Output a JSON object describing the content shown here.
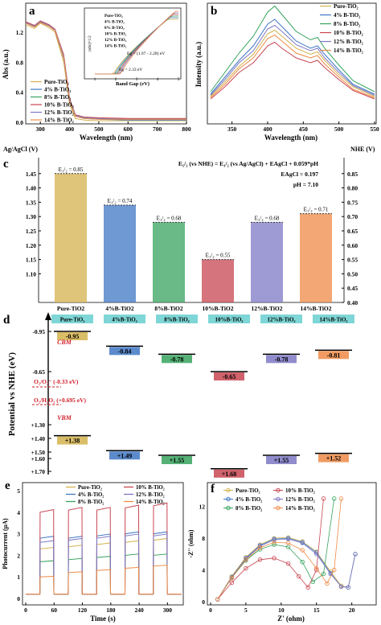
{
  "colors": {
    "pure": "#d4b24c",
    "b4": "#3f77c4",
    "b8": "#37a35e",
    "b10": "#c84652",
    "b12": "#7d78c4",
    "b14": "#ef8a46",
    "cyan": "#7fd6d6",
    "red": "#d01f2a"
  },
  "panel_a": {
    "label": "a",
    "xlabel": "Wavelength (nm)",
    "ylabel": "Abs (a.u.)",
    "xticks": [
      "300",
      "400",
      "500",
      "600",
      "700",
      "800"
    ],
    "yticks": [
      "0.0",
      "0.4",
      "0.8",
      "1.2"
    ],
    "legend": [
      "Pure-TiO₂",
      "4% B-TiO₂",
      "8% B-TiO₂",
      "10% B-TiO₂",
      "12% B-TiO₂",
      "14% B-TiO₂"
    ],
    "inset": {
      "xlabel": "Band Gap (eV)",
      "ylabel": "(αhν)^1/2",
      "xticks": [
        "1",
        "2",
        "3",
        "4",
        "5"
      ],
      "legend": [
        "Pure-TiO₂",
        "4% B-TiO₂",
        "8% B-TiO₂",
        "10% B-TiO₂",
        "12% B-TiO₂",
        "14% B-TiO₂"
      ],
      "ann1": "Eg = (1.97 - 2.28) eV",
      "ann2": "Eg = 2.33 eV"
    }
  },
  "panel_b": {
    "label": "b",
    "xlabel": "Wavelength (nm)",
    "ylabel": "Intensity (a.u.)",
    "xticks": [
      "350",
      "400",
      "450",
      "500",
      "550"
    ],
    "legend": [
      "Pure-TiO₂",
      "4% B-TiO₂",
      "8% B-TiO₂",
      "10% B-TiO₂",
      "12% B-TiO₂",
      "14% B-TiO₂"
    ]
  },
  "panel_c": {
    "label": "c",
    "left_axis_title": "Ag/AgCl (V)",
    "right_axis_title": "NHE (V)",
    "eq1": "E₁/₂ (vs NHE) = E₁/₂ (vs Ag/AgCl) + EAgCl + 0.059*pH",
    "eq2": "EAgCl = 0.197",
    "eq3": "pH = 7.10",
    "left_ticks": [
      "1.45",
      "1.40",
      "1.35",
      "1.30",
      "1.25",
      "1.20",
      "1.15",
      "1.10"
    ],
    "right_ticks": [
      "0.85",
      "0.80",
      "0.75",
      "0.70",
      "0.65",
      "0.60",
      "0.55",
      "0.50",
      "0.45",
      "0.40"
    ],
    "categories": [
      "Pure-TiO2",
      "4%B-TiO2",
      "8%B-TiO2",
      "10%B-TiO2",
      "12%B-TiO2",
      "14%B-TiO2"
    ],
    "bar_labels": [
      "E₁/₂ = 0.85",
      "E₁/₂ = 0.74",
      "E₁/₂ = 0.68",
      "E₁/₂ = 0.55",
      "E₁/₂ = 0.68",
      "E₁/₂ = 0.71"
    ]
  },
  "panel_d": {
    "label": "d",
    "ylabel": "Potential vs NHE (eV)",
    "headers": [
      "Pure-TiO₂",
      "4%B-TiO₂",
      "8%B-TiO₂",
      "10%B-TiO₂",
      "12%B-TiO₂",
      "14%B-TiO₂"
    ],
    "yticks": [
      "-0.95",
      "-0.65",
      "-0.33",
      "+0.695",
      "+1.30",
      "+1.40",
      "+1.50",
      "+1.60",
      "+1.70"
    ],
    "cb": [
      "-0.95",
      "-0.84",
      "-0.78",
      "-0.65",
      "-0.78",
      "-0.81"
    ],
    "vb": [
      "+1.38",
      "+1.49",
      "+1.55",
      "+1.68",
      "+1.55",
      "+1.52"
    ],
    "cbm": "CBM",
    "vbm": "VBM",
    "o2": "O₂/O₂⁻ (-0.33 eV)",
    "h2o2": "O₂/H₂O₂ (+0.695 eV)"
  },
  "panel_e": {
    "label": "e",
    "xlabel": "Time (s)",
    "ylabel": "Photocurrent (μA)",
    "xticks": [
      "0",
      "60",
      "120",
      "180",
      "240",
      "300"
    ],
    "yticks": [
      "0",
      "1",
      "2",
      "3",
      "4",
      "5"
    ],
    "legend": [
      "Pure-TiO₂",
      "4% B-TiO₂",
      "8% B-TiO₂",
      "10% B-TiO₂",
      "12% B-TiO₂",
      "14% B-TiO₂"
    ]
  },
  "panel_f": {
    "label": "f",
    "xlabel": "Z' (ohm)",
    "ylabel": "-Z'' (ohm)",
    "xticks": [
      "0",
      "5",
      "10",
      "15",
      "20"
    ],
    "yticks": [
      "0",
      "4",
      "8",
      "12"
    ],
    "legend": [
      "Pure-TiO₂",
      "4% B-TiO₂",
      "8% B-TiO₂",
      "10% B-TiO₂",
      "12% B-TiO₂",
      "14% B-TiO₂"
    ]
  },
  "chart_data": [
    {
      "type": "line",
      "panel": "a",
      "xlabel": "Wavelength (nm)",
      "ylabel": "Abs (a.u.)",
      "xlim": [
        250,
        800
      ],
      "ylim": [
        0,
        1.5
      ],
      "x": [
        250,
        280,
        300,
        330,
        350,
        380,
        400,
        420,
        450,
        500,
        600,
        700,
        800
      ],
      "series": [
        {
          "name": "Pure-TiO₂",
          "values": [
            1.3,
            1.25,
            1.32,
            1.26,
            1.2,
            0.8,
            0.25,
            0.05,
            0.03,
            0.02,
            0.02,
            0.02,
            0.02
          ]
        },
        {
          "name": "4% B-TiO₂",
          "values": [
            1.32,
            1.27,
            1.33,
            1.28,
            1.22,
            0.85,
            0.28,
            0.08,
            0.05,
            0.04,
            0.03,
            0.03,
            0.03
          ]
        },
        {
          "name": "8% B-TiO₂",
          "values": [
            1.33,
            1.28,
            1.34,
            1.29,
            1.23,
            0.87,
            0.3,
            0.09,
            0.06,
            0.05,
            0.04,
            0.04,
            0.04
          ]
        },
        {
          "name": "10% B-TiO₂",
          "values": [
            1.34,
            1.29,
            1.35,
            1.3,
            1.24,
            0.9,
            0.32,
            0.1,
            0.07,
            0.06,
            0.05,
            0.05,
            0.05
          ]
        },
        {
          "name": "12% B-TiO₂",
          "values": [
            1.33,
            1.28,
            1.34,
            1.29,
            1.23,
            0.88,
            0.31,
            0.09,
            0.06,
            0.05,
            0.04,
            0.04,
            0.04
          ]
        },
        {
          "name": "14% B-TiO₂",
          "values": [
            1.32,
            1.27,
            1.33,
            1.28,
            1.22,
            0.86,
            0.29,
            0.08,
            0.05,
            0.04,
            0.04,
            0.04,
            0.04
          ]
        }
      ]
    },
    {
      "type": "line",
      "panel": "b",
      "xlabel": "Wavelength (nm)",
      "ylabel": "Intensity (a.u.)",
      "xlim": [
        320,
        550
      ],
      "x": [
        320,
        340,
        360,
        380,
        400,
        410,
        420,
        440,
        460,
        470,
        480,
        500,
        520,
        550
      ],
      "series": [
        {
          "name": "Pure-TiO₂",
          "values": [
            0.2,
            0.32,
            0.45,
            0.55,
            0.72,
            0.75,
            0.7,
            0.6,
            0.55,
            0.57,
            0.5,
            0.38,
            0.28,
            0.2
          ]
        },
        {
          "name": "4% B-TiO₂",
          "values": [
            0.22,
            0.36,
            0.5,
            0.62,
            0.8,
            0.84,
            0.78,
            0.66,
            0.6,
            0.62,
            0.55,
            0.42,
            0.3,
            0.22
          ]
        },
        {
          "name": "8% B-TiO₂",
          "values": [
            0.24,
            0.4,
            0.56,
            0.7,
            0.9,
            0.95,
            0.88,
            0.74,
            0.67,
            0.69,
            0.6,
            0.46,
            0.33,
            0.24
          ]
        },
        {
          "name": "10% B-TiO₂",
          "values": [
            0.18,
            0.28,
            0.4,
            0.48,
            0.62,
            0.65,
            0.6,
            0.52,
            0.48,
            0.5,
            0.44,
            0.34,
            0.25,
            0.18
          ]
        },
        {
          "name": "12% B-TiO₂",
          "values": [
            0.21,
            0.34,
            0.48,
            0.58,
            0.76,
            0.79,
            0.74,
            0.63,
            0.58,
            0.6,
            0.52,
            0.4,
            0.29,
            0.21
          ]
        },
        {
          "name": "14% B-TiO₂",
          "values": [
            0.19,
            0.3,
            0.43,
            0.52,
            0.68,
            0.71,
            0.66,
            0.56,
            0.52,
            0.54,
            0.47,
            0.36,
            0.26,
            0.19
          ]
        }
      ]
    },
    {
      "type": "bar",
      "panel": "c",
      "categories": [
        "Pure-TiO2",
        "4%B-TiO2",
        "8%B-TiO2",
        "10%B-TiO2",
        "12%B-TiO2",
        "14%B-TiO2"
      ],
      "values": [
        0.85,
        0.74,
        0.68,
        0.55,
        0.68,
        0.71
      ],
      "ylabel": "NHE (V)",
      "ylim": [
        0.4,
        0.9
      ]
    },
    {
      "type": "bar",
      "panel": "d",
      "categories": [
        "Pure-TiO₂",
        "4%B-TiO₂",
        "8%B-TiO₂",
        "10%B-TiO₂",
        "12%B-TiO₂",
        "14%B-TiO₂"
      ],
      "series": [
        {
          "name": "CBM",
          "values": [
            -0.95,
            -0.84,
            -0.78,
            -0.65,
            -0.78,
            -0.81
          ]
        },
        {
          "name": "VBM",
          "values": [
            1.38,
            1.49,
            1.55,
            1.68,
            1.55,
            1.52
          ]
        }
      ]
    },
    {
      "type": "line",
      "panel": "e",
      "xlabel": "Time (s)",
      "ylabel": "Photocurrent (μA)",
      "xlim": [
        0,
        330
      ],
      "ylim": [
        0,
        5
      ],
      "series": [
        {
          "name": "Pure-TiO₂",
          "values": [
            2.3,
            2.4,
            2.5,
            2.6,
            2.7
          ]
        },
        {
          "name": "4% B-TiO₂",
          "values": [
            2.8,
            2.8,
            2.9,
            3.0,
            3.0
          ]
        },
        {
          "name": "8% B-TiO₂",
          "values": [
            1.7,
            1.8,
            1.9,
            2.0,
            2.0
          ]
        },
        {
          "name": "10% B-TiO₂",
          "values": [
            4.0,
            4.1,
            4.1,
            4.2,
            4.3
          ]
        },
        {
          "name": "12% B-TiO₂",
          "values": [
            2.6,
            2.7,
            2.8,
            2.9,
            2.9
          ]
        },
        {
          "name": "14% B-TiO₂",
          "values": [
            1.0,
            1.2,
            1.3,
            1.4,
            1.5
          ]
        }
      ]
    },
    {
      "type": "scatter",
      "panel": "f",
      "xlabel": "Z' (ohm)",
      "ylabel": "-Z'' (ohm)",
      "xlim": [
        0,
        23
      ],
      "ylim": [
        0,
        14
      ],
      "series": [
        {
          "name": "Pure-TiO₂",
          "x": [
            1,
            3,
            5,
            7,
            9,
            11,
            13,
            15,
            17,
            18.5,
            19.5,
            20.5
          ],
          "values": [
            0.3,
            3.2,
            5.6,
            7.2,
            8.0,
            8.1,
            7.6,
            6.3,
            3.8,
            2.0,
            1.8,
            6.0
          ]
        },
        {
          "name": "4% B-TiO₂",
          "x": [
            1,
            3,
            5,
            7,
            9,
            11,
            13,
            15,
            17,
            18.5,
            19.5,
            20.5
          ],
          "values": [
            0.3,
            3.1,
            5.5,
            7.1,
            7.9,
            8.0,
            7.5,
            6.2,
            3.6,
            1.9,
            1.8,
            6.0
          ]
        },
        {
          "name": "8% B-TiO₂",
          "x": [
            1,
            3,
            5,
            7,
            9,
            11,
            13,
            14.5,
            16,
            17.5
          ],
          "values": [
            0.3,
            3.0,
            5.2,
            6.6,
            7.2,
            6.9,
            5.0,
            2.5,
            3.5,
            13.0
          ]
        },
        {
          "name": "10% B-TiO₂",
          "x": [
            1,
            3,
            5,
            7,
            9,
            11,
            12.5,
            13.8,
            15,
            16
          ],
          "values": [
            0.3,
            2.4,
            4.2,
            5.3,
            5.5,
            4.8,
            3.2,
            1.8,
            4.0,
            13.0
          ]
        },
        {
          "name": "12% B-TiO₂",
          "x": [
            1,
            3,
            5,
            7,
            9,
            11,
            13,
            15,
            17,
            18.5,
            19.5,
            20.5
          ],
          "values": [
            0.3,
            3.0,
            5.4,
            7.0,
            7.8,
            7.9,
            7.4,
            6.0,
            3.5,
            1.9,
            1.8,
            6.0
          ]
        },
        {
          "name": "14% B-TiO₂",
          "x": [
            1,
            3,
            5,
            7,
            9,
            11,
            13,
            15,
            16.5,
            17.5,
            18.5
          ],
          "values": [
            0.3,
            3.0,
            5.3,
            6.8,
            7.5,
            7.4,
            6.5,
            4.2,
            2.3,
            4.0,
            13.0
          ]
        }
      ]
    }
  ]
}
